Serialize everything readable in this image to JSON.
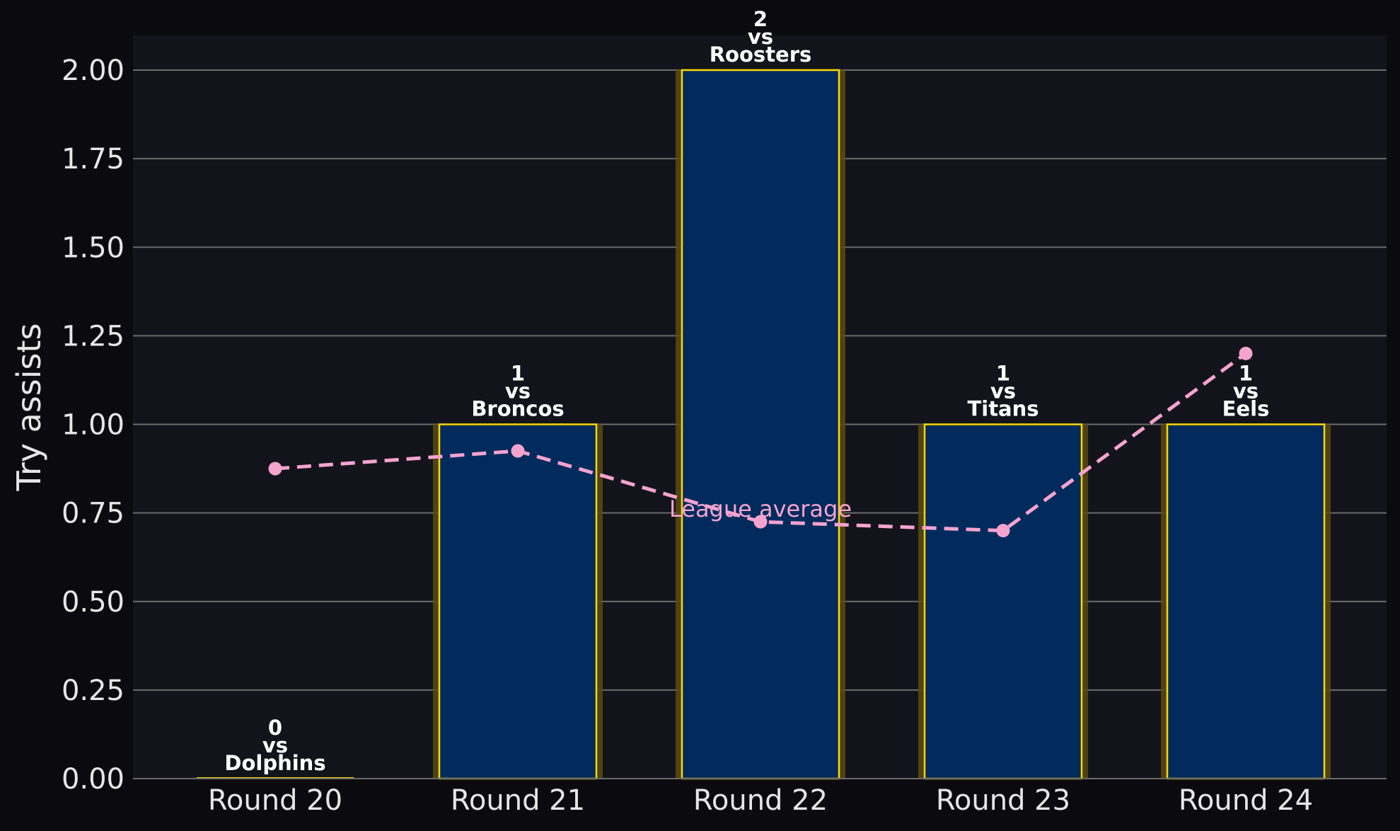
{
  "chart_data": {
    "type": "bar",
    "categories": [
      "Round 20",
      "Round 21",
      "Round 22",
      "Round 23",
      "Round 24"
    ],
    "values": [
      0,
      1,
      2,
      1,
      1
    ],
    "opponents": [
      "Dolphins",
      "Broncos",
      "Roosters",
      "Titans",
      "Eels"
    ],
    "bar_labels": [
      [
        "0",
        "vs",
        "Dolphins"
      ],
      [
        "1",
        "vs",
        "Broncos"
      ],
      [
        "2",
        "vs",
        "Roosters"
      ],
      [
        "1",
        "vs",
        "Titans"
      ],
      [
        "1",
        "vs",
        "Eels"
      ]
    ],
    "line_series": {
      "name": "League average",
      "values": [
        0.875,
        0.925,
        0.725,
        0.7,
        1.2
      ]
    },
    "ylabel": "Try assists",
    "xlabel": "",
    "ylim": [
      0,
      2.1
    ],
    "yticks": [
      0,
      0.25,
      0.5,
      0.75,
      1.0,
      1.25,
      1.5,
      1.75,
      2.0
    ],
    "ytick_labels": [
      "0.00",
      "0.25",
      "0.50",
      "0.75",
      "1.00",
      "1.25",
      "1.50",
      "1.75",
      "2.00"
    ],
    "grid": "horizontal",
    "colors": {
      "figure_background": "#0b0b0f",
      "plot_background": "#13141b",
      "bar_fill": "#002b5c",
      "bar_edge": "#ffd700",
      "bar_glow": "#5a4a12",
      "line": "#f5a3cf",
      "grid": "#6b6b6b",
      "text": "#e6e6e6"
    }
  }
}
